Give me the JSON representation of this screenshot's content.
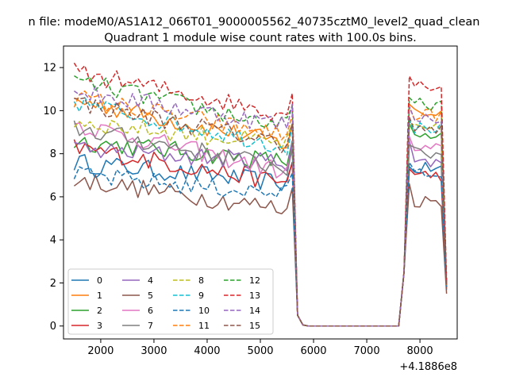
{
  "figure": {
    "suptitle": "n file: modeM0/AS1A12_066T01_9000005562_40735cztM0_level2_quad_clean",
    "title": "Quadrant 1 module wise count rates with 100.0s bins.",
    "x_offset_label": "+4.1886e8"
  },
  "chart_data": {
    "type": "line",
    "title": "Quadrant 1 module wise count rates with 100.0s bins.",
    "xlabel": "",
    "ylabel": "",
    "x_offset": 418860000,
    "xlim": [
      1300,
      8700
    ],
    "ylim": [
      -0.6,
      13
    ],
    "xticks": [
      2000,
      3000,
      4000,
      5000,
      6000,
      7000,
      8000
    ],
    "xtick_labels": [
      "2000",
      "3000",
      "4000",
      "5000",
      "6000",
      "7000",
      "8000"
    ],
    "yticks": [
      0,
      2,
      4,
      6,
      8,
      10,
      12
    ],
    "ytick_labels": [
      "0",
      "2",
      "4",
      "6",
      "8",
      "10",
      "12"
    ],
    "grid": false,
    "legend": {
      "placement": "lower-left",
      "columns": 4
    },
    "segments": {
      "s1": [
        1500,
        5600
      ],
      "drop": [
        5700,
        5800
      ],
      "gap": [
        5900,
        7600
      ],
      "rise": [
        7700,
        7800
      ],
      "s2": [
        7900,
        8500
      ]
    },
    "series": [
      {
        "name": "0",
        "color": "#1f77b4",
        "dash": "solid",
        "s1_start": 7.6,
        "s1_end": 6.6,
        "s2_level": 7.3,
        "peak": 7.4,
        "end": 2.0
      },
      {
        "name": "1",
        "color": "#ff7f0e",
        "dash": "solid",
        "s1_start": 10.5,
        "s1_end": 8.4,
        "s2_level": 9.9,
        "peak": 10.3,
        "end": 1.9
      },
      {
        "name": "2",
        "color": "#2ca02c",
        "dash": "solid",
        "s1_start": 8.6,
        "s1_end": 7.6,
        "s2_level": 8.7,
        "peak": 9.4,
        "end": 1.8
      },
      {
        "name": "3",
        "color": "#d62728",
        "dash": "solid",
        "s1_start": 8.3,
        "s1_end": 6.6,
        "s2_level": 7.0,
        "peak": 7.3,
        "end": 1.7
      },
      {
        "name": "4",
        "color": "#9467bd",
        "dash": "solid",
        "s1_start": 8.2,
        "s1_end": 7.6,
        "s2_level": 7.6,
        "peak": 8.6,
        "end": 1.8
      },
      {
        "name": "5",
        "color": "#8c564b",
        "dash": "solid",
        "s1_start": 6.8,
        "s1_end": 5.4,
        "s2_level": 5.8,
        "peak": 6.6,
        "end": 1.5
      },
      {
        "name": "6",
        "color": "#e377c2",
        "dash": "solid",
        "s1_start": 9.4,
        "s1_end": 7.1,
        "s2_level": 8.2,
        "peak": 8.8,
        "end": 1.8
      },
      {
        "name": "7",
        "color": "#7f7f7f",
        "dash": "solid",
        "s1_start": 9.2,
        "s1_end": 7.3,
        "s2_level": 8.0,
        "peak": 8.4,
        "end": 1.8
      },
      {
        "name": "8",
        "color": "#bcbd22",
        "dash": "dashed",
        "s1_start": 9.5,
        "s1_end": 8.4,
        "s2_level": 9.1,
        "peak": 9.3,
        "end": 1.9
      },
      {
        "name": "9",
        "color": "#17becf",
        "dash": "dashed",
        "s1_start": 10.4,
        "s1_end": 8.3,
        "s2_level": 9.2,
        "peak": 9.6,
        "end": 1.9
      },
      {
        "name": "10",
        "color": "#1f77b4",
        "dash": "dashed",
        "s1_start": 7.0,
        "s1_end": 6.1,
        "s2_level": 7.1,
        "peak": 7.6,
        "end": 1.7
      },
      {
        "name": "11",
        "color": "#ff7f0e",
        "dash": "dashed",
        "s1_start": 10.6,
        "s1_end": 8.8,
        "s2_level": 9.8,
        "peak": 10.2,
        "end": 1.9
      },
      {
        "name": "12",
        "color": "#2ca02c",
        "dash": "dashed",
        "s1_start": 11.4,
        "s1_end": 9.2,
        "s2_level": 10.3,
        "peak": 10.6,
        "end": 2.0
      },
      {
        "name": "13",
        "color": "#d62728",
        "dash": "dashed",
        "s1_start": 11.8,
        "s1_end": 9.8,
        "s2_level": 11.2,
        "peak": 11.6,
        "end": 2.1
      },
      {
        "name": "14",
        "color": "#9467bd",
        "dash": "dashed",
        "s1_start": 10.9,
        "s1_end": 9.3,
        "s2_level": 9.7,
        "peak": 10.2,
        "end": 1.9
      },
      {
        "name": "15",
        "color": "#8c564b",
        "dash": "dashed",
        "s1_start": 10.4,
        "s1_end": 8.4,
        "s2_level": 9.1,
        "peak": 9.7,
        "end": 1.8
      }
    ]
  }
}
